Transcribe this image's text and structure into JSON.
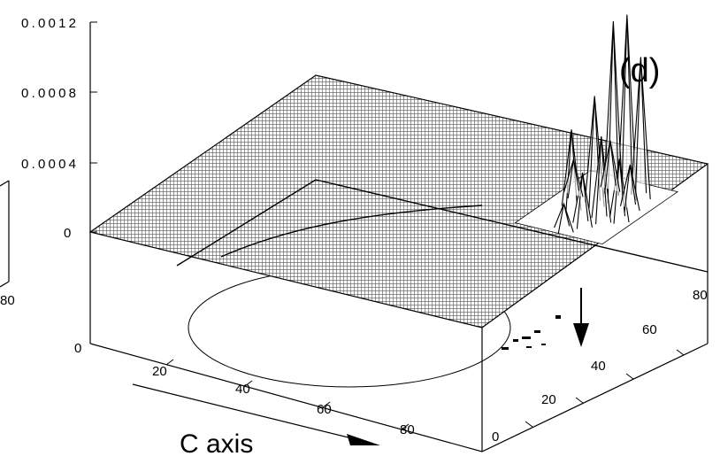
{
  "chart_data": {
    "type": "surface3d",
    "panel_label": "(d)",
    "xlabel": "C axis",
    "ylabel": "",
    "zlabel": "",
    "x_ticks": [
      "0",
      "20",
      "40",
      "60",
      "80"
    ],
    "y_ticks": [
      "0",
      "20",
      "40",
      "60",
      "80"
    ],
    "z_ticks": [
      "0",
      "0.0004",
      "0.0008",
      "0.0012"
    ],
    "left_neighbor_tick": "80",
    "xlim": [
      0,
      90
    ],
    "ylim": [
      0,
      90
    ],
    "zlim": [
      0,
      0.0012
    ],
    "peaks": [
      {
        "x": 83,
        "y": 70,
        "z": 0.00105
      },
      {
        "x": 81,
        "y": 68,
        "z": 0.00102
      },
      {
        "x": 85,
        "y": 72,
        "z": 0.0008
      },
      {
        "x": 79,
        "y": 64,
        "z": 0.00062
      },
      {
        "x": 84,
        "y": 58,
        "z": 0.00048
      },
      {
        "x": 76,
        "y": 60,
        "z": 0.00045
      },
      {
        "x": 87,
        "y": 60,
        "z": 0.00035
      },
      {
        "x": 82,
        "y": 54,
        "z": 0.0003
      },
      {
        "x": 78,
        "y": 72,
        "z": 0.00028
      },
      {
        "x": 73,
        "y": 66,
        "z": 0.0002
      },
      {
        "x": 86,
        "y": 66,
        "z": 0.00025
      },
      {
        "x": 80,
        "y": 50,
        "z": 0.00015
      }
    ]
  }
}
